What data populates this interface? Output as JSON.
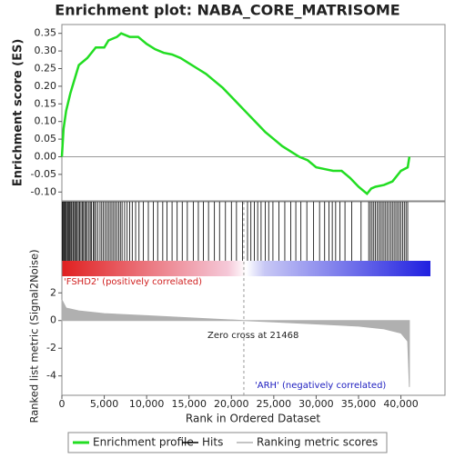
{
  "chart_data": {
    "type": "gsea",
    "title": "Enrichment plot: NABA_CORE_MATRISOME",
    "xlabel": "Rank in Ordered Dataset",
    "xlim": [
      0,
      45200
    ],
    "xticks": [
      0,
      {
        "value": 5000,
        "label": "5,000"
      },
      {
        "value": 10000,
        "label": "10,000"
      },
      {
        "value": 15000,
        "label": "15,000"
      },
      {
        "value": 20000,
        "label": "20,000"
      },
      {
        "value": 25000,
        "label": "25,000"
      },
      {
        "value": 30000,
        "label": "30,000"
      },
      {
        "value": 35000,
        "label": "35,000"
      },
      {
        "value": 40000,
        "label": "40,000"
      }
    ],
    "es": {
      "ylabel": "Enrichment score (ES)",
      "ylim": [
        -0.125,
        0.375
      ],
      "yticks": [
        0.35,
        {
          "value": 0.3,
          "label": "0.30"
        },
        0.25,
        {
          "value": 0.2,
          "label": "0.20"
        },
        0.15,
        {
          "value": 0.1,
          "label": "0.10"
        },
        0.05,
        {
          "value": 0,
          "label": "0.00"
        },
        -0.05,
        {
          "value": -0.1,
          "label": "-0.10"
        }
      ],
      "color": "#22dd22",
      "x": [
        0,
        200,
        500,
        1000,
        1500,
        2000,
        3000,
        4000,
        5000,
        5500,
        6500,
        7000,
        8000,
        9000,
        10000,
        11000,
        12000,
        13000,
        14000,
        15000,
        16000,
        17000,
        18000,
        19000,
        20000,
        21000,
        22000,
        23000,
        24000,
        25000,
        26000,
        27000,
        28000,
        29000,
        30000,
        31000,
        32000,
        33000,
        34000,
        35000,
        36000,
        36500,
        37000,
        38000,
        39000,
        40000,
        40800,
        41000
      ],
      "values": [
        0,
        0.08,
        0.13,
        0.18,
        0.22,
        0.26,
        0.28,
        0.31,
        0.31,
        0.33,
        0.34,
        0.35,
        0.34,
        0.34,
        0.32,
        0.305,
        0.295,
        0.29,
        0.28,
        0.265,
        0.25,
        0.235,
        0.215,
        0.195,
        0.17,
        0.145,
        0.12,
        0.095,
        0.07,
        0.05,
        0.03,
        0.015,
        0,
        -0.01,
        -0.03,
        -0.035,
        -0.04,
        -0.04,
        -0.06,
        -0.085,
        -0.105,
        -0.09,
        -0.085,
        -0.08,
        -0.07,
        -0.04,
        -0.03,
        0
      ]
    },
    "hits": [
      60,
      150,
      260,
      380,
      450,
      560,
      700,
      820,
      900,
      1050,
      1150,
      1300,
      1400,
      1550,
      1700,
      1800,
      1950,
      2100,
      2250,
      2400,
      2550,
      2700,
      2850,
      3000,
      3200,
      3350,
      3500,
      3700,
      3850,
      4000,
      4250,
      4500,
      4700,
      4900,
      5100,
      5300,
      5500,
      5700,
      5900,
      6100,
      6300,
      6500,
      6700,
      6900,
      7100,
      7400,
      7700,
      8000,
      8300,
      8700,
      9100,
      9600,
      10200,
      10800,
      11300,
      11900,
      12400,
      13000,
      13600,
      14200,
      14800,
      15500,
      16100,
      16700,
      17300,
      18000,
      18600,
      19300,
      20000,
      20600,
      21300,
      21900,
      22300,
      22700,
      23100,
      23500,
      24000,
      24400,
      24900,
      25600,
      26300,
      27000,
      27600,
      28200,
      28900,
      29700,
      30400,
      31000,
      31500,
      31900,
      32300,
      32800,
      33400,
      34200,
      35300,
      36200,
      36400,
      36600,
      36800,
      37000,
      37200,
      37400,
      37600,
      37800,
      38000,
      38200,
      38400,
      38600,
      38800,
      39000,
      39200,
      39400,
      39600,
      39800,
      40000,
      40200,
      40400,
      40600,
      40800
    ],
    "metric": {
      "ylabel": "Ranked list metric (Signal2Noise)",
      "ylim": [
        -5.4,
        3.2
      ],
      "yticks": [
        2,
        0,
        -2,
        -4
      ],
      "color": "#b0b0b0",
      "x": [
        0,
        500,
        2000,
        5000,
        10000,
        15000,
        21468,
        25000,
        30000,
        35000,
        38000,
        40000,
        40800,
        41000
      ],
      "values": [
        1.5,
        0.9,
        0.7,
        0.5,
        0.35,
        0.2,
        0,
        -0.1,
        -0.25,
        -0.4,
        -0.6,
        -0.9,
        -1.5,
        -4.8
      ]
    },
    "zero_cross": 21468,
    "zero_cross_label": "Zero cross at 21468",
    "pos_label": "'FSHD2' (positively correlated)",
    "neg_label": "'ARH' (negatively correlated)",
    "legend": [
      {
        "name": "Enrichment profile",
        "color": "#22dd22"
      },
      {
        "name": "Hits",
        "color": "#000000"
      },
      {
        "name": "Ranking metric scores",
        "color": "#b0b0b0"
      }
    ]
  }
}
